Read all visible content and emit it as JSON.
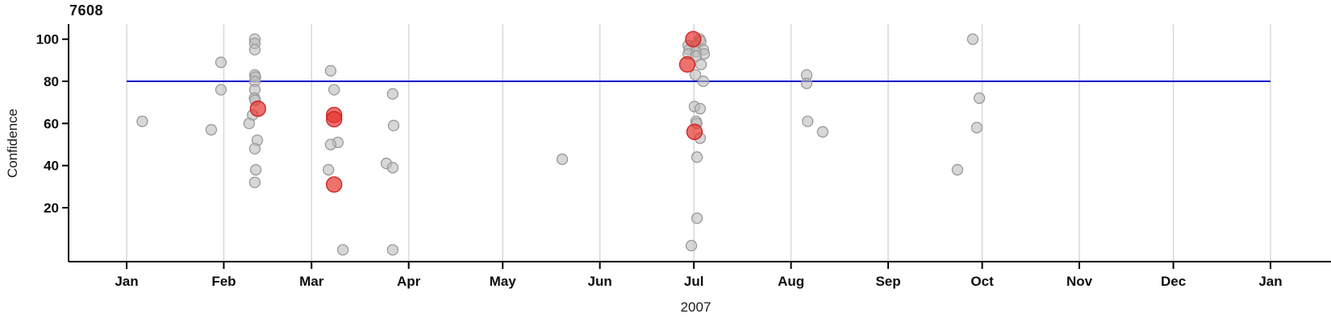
{
  "title": "7608",
  "chart_data": {
    "type": "scatter",
    "title": "7608",
    "xlabel": "2007",
    "ylabel": "Confidence",
    "x_axis": {
      "unit": "day-of-year-2007",
      "domain_days": [
        1,
        366
      ],
      "tick_days": [
        1,
        32,
        60,
        91,
        121,
        152,
        182,
        213,
        244,
        274,
        305,
        335,
        366
      ],
      "tick_labels": [
        "Jan",
        "Feb",
        "Mar",
        "Apr",
        "May",
        "Jun",
        "Jul",
        "Aug",
        "Sep",
        "Oct",
        "Nov",
        "Dec",
        "Jan"
      ],
      "grid": true
    },
    "y_axis": {
      "ticks": [
        20,
        40,
        60,
        80,
        100
      ],
      "range": [
        -6,
        107
      ],
      "grid": false
    },
    "reference_line": {
      "y": 80,
      "color": "#0b0bcc",
      "from_day": 1,
      "to_day": 366
    },
    "series": [
      {
        "name": "observations",
        "color": "#bdbdbd",
        "stroke": "#9a9a9a",
        "radius": 6.5,
        "opacity": 0.6,
        "points": [
          {
            "d": 6.0,
            "v": 61
          },
          {
            "d": 28.0,
            "v": 57
          },
          {
            "d": 31.1,
            "v": 89
          },
          {
            "d": 31.1,
            "v": 76
          },
          {
            "d": 41.9,
            "v": 100
          },
          {
            "d": 41.9,
            "v": 98
          },
          {
            "d": 41.9,
            "v": 95
          },
          {
            "d": 41.9,
            "v": 83
          },
          {
            "d": 42.1,
            "v": 82
          },
          {
            "d": 41.9,
            "v": 80
          },
          {
            "d": 41.9,
            "v": 76
          },
          {
            "d": 41.8,
            "v": 72
          },
          {
            "d": 42.0,
            "v": 71
          },
          {
            "d": 41.2,
            "v": 64
          },
          {
            "d": 40.1,
            "v": 60
          },
          {
            "d": 42.7,
            "v": 52
          },
          {
            "d": 41.9,
            "v": 48
          },
          {
            "d": 42.2,
            "v": 38
          },
          {
            "d": 41.9,
            "v": 32
          },
          {
            "d": 66.1,
            "v": 85
          },
          {
            "d": 67.2,
            "v": 76
          },
          {
            "d": 68.4,
            "v": 51
          },
          {
            "d": 66.1,
            "v": 50
          },
          {
            "d": 65.4,
            "v": 38
          },
          {
            "d": 70.0,
            "v": 0
          },
          {
            "d": 85.9,
            "v": 74
          },
          {
            "d": 86.2,
            "v": 59
          },
          {
            "d": 83.9,
            "v": 41
          },
          {
            "d": 85.9,
            "v": 39
          },
          {
            "d": 85.9,
            "v": 0
          },
          {
            "d": 140.0,
            "v": 43
          },
          {
            "d": 183.9,
            "v": 100
          },
          {
            "d": 184.2,
            "v": 99
          },
          {
            "d": 182.5,
            "v": 97
          },
          {
            "d": 180.2,
            "v": 97
          },
          {
            "d": 185.0,
            "v": 95
          },
          {
            "d": 180.5,
            "v": 95
          },
          {
            "d": 182.7,
            "v": 94
          },
          {
            "d": 185.3,
            "v": 93
          },
          {
            "d": 180.2,
            "v": 93
          },
          {
            "d": 182.7,
            "v": 92
          },
          {
            "d": 184.3,
            "v": 88
          },
          {
            "d": 182.5,
            "v": 83
          },
          {
            "d": 185.0,
            "v": 80
          },
          {
            "d": 182.2,
            "v": 68
          },
          {
            "d": 184.0,
            "v": 67
          },
          {
            "d": 182.7,
            "v": 61
          },
          {
            "d": 182.9,
            "v": 60
          },
          {
            "d": 184.0,
            "v": 53
          },
          {
            "d": 183.0,
            "v": 44
          },
          {
            "d": 183.0,
            "v": 15
          },
          {
            "d": 181.2,
            "v": 2
          },
          {
            "d": 218.0,
            "v": 83
          },
          {
            "d": 218.0,
            "v": 79
          },
          {
            "d": 218.3,
            "v": 61
          },
          {
            "d": 223.1,
            "v": 56
          },
          {
            "d": 271.0,
            "v": 100
          },
          {
            "d": 273.1,
            "v": 72
          },
          {
            "d": 272.3,
            "v": 58
          },
          {
            "d": 266.1,
            "v": 38
          }
        ]
      },
      {
        "name": "highlighted-observations",
        "color": "#e5342e",
        "stroke": "#cc2020",
        "radius": 9.5,
        "opacity": 0.7,
        "points": [
          {
            "d": 42.9,
            "v": 67
          },
          {
            "d": 67.2,
            "v": 64
          },
          {
            "d": 67.2,
            "v": 62
          },
          {
            "d": 67.2,
            "v": 31
          },
          {
            "d": 181.8,
            "v": 100
          },
          {
            "d": 179.9,
            "v": 88
          },
          {
            "d": 182.2,
            "v": 56
          }
        ]
      }
    ],
    "colors": {
      "axis": "#000000",
      "gridline": "#d8d8d8",
      "tick_text": "#0d0d0d"
    }
  }
}
